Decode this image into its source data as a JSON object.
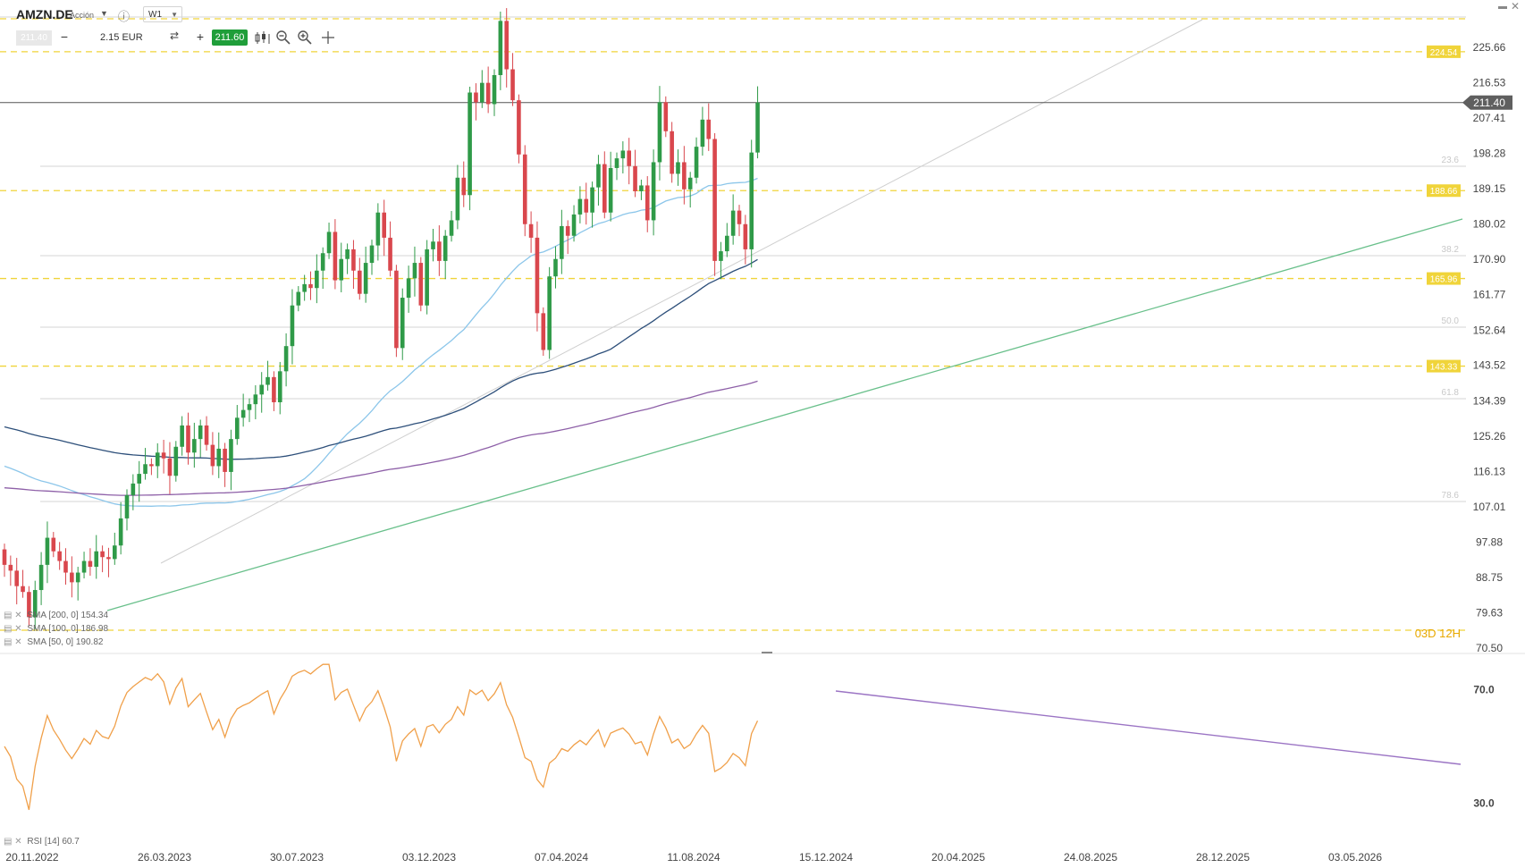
{
  "header": {
    "symbol": "AMZN.DE",
    "instrument_type": "Acción",
    "timeframe": "W1",
    "bid": "211.40",
    "quantity": "2.15 EUR",
    "ask": "211.60"
  },
  "icons": [
    "dropdown-caret-icon",
    "info-icon",
    "swap-icon",
    "candle-style-icon",
    "zoom-out-icon",
    "zoom-in-icon",
    "crosshair-icon",
    "minimize-icon",
    "close-icon"
  ],
  "colors": {
    "bull": "#2f9a48",
    "bear": "#d9474d",
    "sma50": "#8cc6ea",
    "sma100": "#2d4f7a",
    "sma200": "#8e60a8",
    "support": "#f0d43a",
    "trend": "#69c08b",
    "rsi": "#f0a04a",
    "rsi_trend": "#9b74c4"
  },
  "chart_data": [
    {
      "type": "candlestick",
      "series_name": "AMZN.DE",
      "interval": "W1",
      "x_ticks": [
        "20.11.2022",
        "26.03.2023",
        "30.07.2023",
        "03.12.2023",
        "07.04.2024",
        "11.08.2024",
        "15.12.2024",
        "20.04.2025",
        "24.08.2025",
        "28.12.2025",
        "03.05.2026"
      ],
      "y_ticks": [
        "225.66",
        "216.53",
        "207.41",
        "198.28",
        "189.15",
        "180.02",
        "170.90",
        "161.77",
        "152.64",
        "143.52",
        "134.39",
        "125.26",
        "116.13",
        "107.01",
        "97.88",
        "88.75",
        "79.63",
        "70.50"
      ],
      "ylim": [
        70.5,
        225.66
      ],
      "last_price": "211.40",
      "closes": [
        92.0,
        90.5,
        86.5,
        85.0,
        78.5,
        85.5,
        92.0,
        99.0,
        95.5,
        93.0,
        90.0,
        87.5,
        90.0,
        93.0,
        91.5,
        95.5,
        94.0,
        93.5,
        97.0,
        104.0,
        110.0,
        113.0,
        115.5,
        118.0,
        117.5,
        121.0,
        119.5,
        115.0,
        122.5,
        128.0,
        121.0,
        124.5,
        128.0,
        123.0,
        117.5,
        122.0,
        116.0,
        124.5,
        130.0,
        132.0,
        133.5,
        136.0,
        138.5,
        140.5,
        134.0,
        142.0,
        148.5,
        159.0,
        162.5,
        164.5,
        163.5,
        168.0,
        172.5,
        178.0,
        165.5,
        171.0,
        173.5,
        168.0,
        162.0,
        170.0,
        174.5,
        183.0,
        176.5,
        168.0,
        148.0,
        161.0,
        166.0,
        170.0,
        159.0,
        173.5,
        175.5,
        170.5,
        177.0,
        181.0,
        192.0,
        187.5,
        214.0,
        211.5,
        216.5,
        211.0,
        218.5,
        232.5,
        220.0,
        212.0,
        198.0,
        180.0,
        176.5,
        157.0,
        147.5,
        166.5,
        171.0,
        179.5,
        177.0,
        182.5,
        186.5,
        183.0,
        189.5,
        195.5,
        183.0,
        194.5,
        197.0,
        199.0,
        195.0,
        188.5,
        190.0,
        181.0,
        196.0,
        211.5,
        204.0,
        193.0,
        196.0,
        189.0,
        192.0,
        200.0,
        207.0,
        202.0,
        170.5,
        173.0,
        177.0,
        183.5,
        180.0,
        173.5,
        198.5,
        211.4
      ],
      "support_levels": [
        "224.54",
        "188.66",
        "165.96",
        "143.33"
      ],
      "fib_levels": [
        "23.6",
        "38.2",
        "50.0",
        "61.8",
        "78.6"
      ],
      "session_label": "03D 12H",
      "indicators": [
        {
          "name": "SMA [200, 0]",
          "value": "154.34"
        },
        {
          "name": "SMA [100, 0]",
          "value": "186.98"
        },
        {
          "name": "SMA [50, 0]",
          "value": "190.82"
        }
      ]
    },
    {
      "type": "line",
      "series_name": "RSI [14]",
      "last_value": "60.7",
      "y_ticks": [
        "70.0",
        "30.0"
      ],
      "ylim": [
        20,
        80
      ]
    }
  ]
}
